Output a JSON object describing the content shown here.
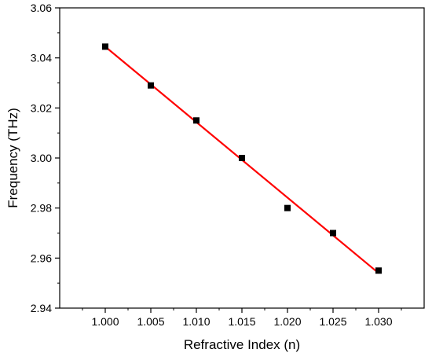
{
  "chart_data": {
    "type": "scatter",
    "title": "",
    "xlabel": "Refractive Index (n)",
    "ylabel": "Frequency (THz)",
    "xlim": [
      0.995,
      1.035
    ],
    "ylim": [
      2.94,
      3.06
    ],
    "x_ticks": [
      1.0,
      1.005,
      1.01,
      1.015,
      1.02,
      1.025,
      1.03
    ],
    "y_ticks": [
      2.94,
      2.96,
      2.98,
      3.0,
      3.02,
      3.04,
      3.06
    ],
    "x_tick_labels": [
      "1.000",
      "1.005",
      "1.010",
      "1.015",
      "1.020",
      "1.025",
      "1.030"
    ],
    "y_tick_labels": [
      "2.94",
      "2.96",
      "2.98",
      "3.00",
      "3.02",
      "3.04",
      "3.06"
    ],
    "grid": false,
    "series": [
      {
        "type": "scatter",
        "marker": "square",
        "color": "#000000",
        "x": [
          1.0,
          1.005,
          1.01,
          1.015,
          1.02,
          1.025,
          1.03
        ],
        "y": [
          3.0445,
          3.029,
          3.015,
          3.0,
          2.98,
          2.97,
          2.955
        ]
      },
      {
        "type": "line",
        "color": "#ff0000",
        "x": [
          1.0,
          1.03
        ],
        "y": [
          3.0445,
          2.954
        ]
      }
    ]
  }
}
